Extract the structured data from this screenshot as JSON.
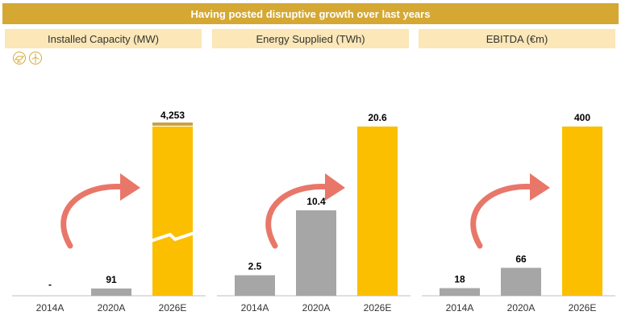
{
  "title": "Having posted disruptive growth over last years",
  "icons": [
    "solar-panel-icon",
    "wind-turbine-icon"
  ],
  "colors": {
    "banner": "#d4a833",
    "header_bg": "#fbe7b7",
    "actual": "#a6a6a6",
    "estimate": "#fbbf00",
    "arrow": "#e8776a"
  },
  "chart_data": [
    {
      "type": "bar",
      "title": "Installed Capacity (MW)",
      "categories": [
        "2014A",
        "2020A",
        "2026E"
      ],
      "values": [
        0,
        91,
        4253
      ],
      "value_labels": [
        "-",
        "91",
        "4,253"
      ],
      "axis_break": true
    },
    {
      "type": "bar",
      "title": "Energy Supplied (TWh)",
      "categories": [
        "2014A",
        "2020A",
        "2026E"
      ],
      "values": [
        2.5,
        10.4,
        20.6
      ],
      "value_labels": [
        "2.5",
        "10.4",
        "20.6"
      ],
      "ylim": [
        0,
        20.6
      ]
    },
    {
      "type": "bar",
      "title": "EBITDA (€m)",
      "categories": [
        "2014A",
        "2020A",
        "2026E"
      ],
      "values": [
        18,
        66,
        400
      ],
      "value_labels": [
        "18",
        "66",
        "400"
      ],
      "ylim": [
        0,
        400
      ]
    }
  ]
}
